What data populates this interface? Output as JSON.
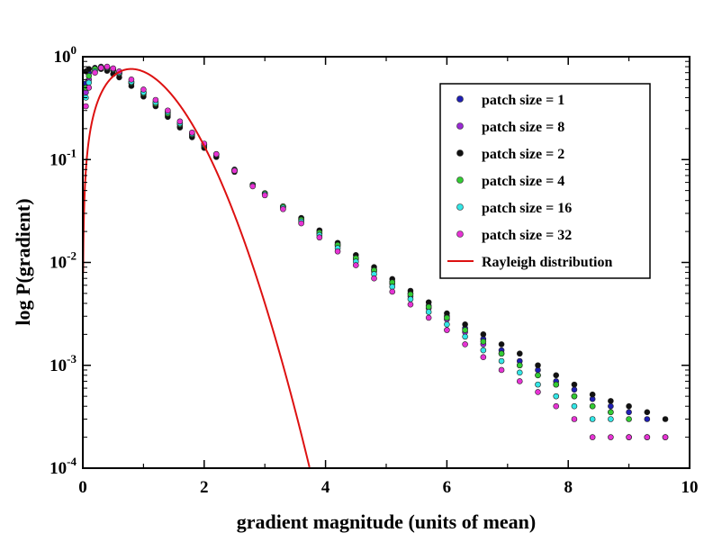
{
  "chart_data": {
    "type": "scatter",
    "title": "",
    "xlabel": "gradient magnitude (units of mean)",
    "ylabel": "log P(gradient)",
    "xlim": [
      0,
      10
    ],
    "ylim": [
      0.0001,
      1
    ],
    "yscale": "log",
    "x_ticks": [
      {
        "value": 0,
        "label": "0"
      },
      {
        "value": 2,
        "label": "2"
      },
      {
        "value": 4,
        "label": "4"
      },
      {
        "value": 6,
        "label": "6"
      },
      {
        "value": 8,
        "label": "8"
      },
      {
        "value": 10,
        "label": "10"
      }
    ],
    "y_ticks": [
      {
        "value": 1,
        "base": "10",
        "exp": "0"
      },
      {
        "value": 0.1,
        "base": "10",
        "exp": "-1"
      },
      {
        "value": 0.01,
        "base": "10",
        "exp": "-2"
      },
      {
        "value": 0.001,
        "base": "10",
        "exp": "-3"
      },
      {
        "value": 0.0001,
        "base": "10",
        "exp": "-4"
      }
    ],
    "legend_position": "top-right",
    "series": [
      {
        "name": "patch size = 1",
        "kind": "scatter",
        "color": "#1f1fb4",
        "x": [
          0.05,
          0.1,
          0.2,
          0.3,
          0.4,
          0.5,
          0.6,
          0.8,
          1.0,
          1.2,
          1.4,
          1.6,
          1.8,
          2.0,
          2.2,
          2.5,
          2.8,
          3.0,
          3.3,
          3.6,
          3.9,
          4.2,
          4.5,
          4.8,
          5.1,
          5.4,
          5.7,
          6.0,
          6.3,
          6.6,
          6.9,
          7.2,
          7.5,
          7.8,
          8.1,
          8.4,
          8.7,
          9.0,
          9.3
        ],
        "y": [
          0.55,
          0.7,
          0.78,
          0.8,
          0.78,
          0.74,
          0.68,
          0.55,
          0.43,
          0.34,
          0.27,
          0.21,
          0.17,
          0.135,
          0.11,
          0.078,
          0.056,
          0.047,
          0.035,
          0.027,
          0.02,
          0.015,
          0.011,
          0.0085,
          0.0065,
          0.005,
          0.0038,
          0.003,
          0.0023,
          0.0018,
          0.0014,
          0.0011,
          0.0009,
          0.0007,
          0.00058,
          0.00047,
          0.0004,
          0.00035,
          0.0003
        ]
      },
      {
        "name": "patch size = 8",
        "kind": "scatter",
        "color": "#9a2ad4",
        "x": [
          0.05,
          0.1,
          0.2,
          0.3,
          0.4,
          0.5,
          0.6,
          0.8,
          1.0,
          1.2,
          1.4,
          1.6,
          1.8,
          2.0,
          2.2,
          2.5,
          2.8,
          3.0,
          3.3,
          3.6,
          3.9,
          4.2,
          4.5,
          4.8,
          5.1,
          5.4,
          5.7,
          6.0,
          6.3,
          6.6,
          6.9,
          7.2,
          7.5,
          7.8,
          8.1,
          8.4,
          8.7
        ],
        "y": [
          0.45,
          0.6,
          0.74,
          0.79,
          0.79,
          0.76,
          0.7,
          0.57,
          0.45,
          0.36,
          0.29,
          0.225,
          0.18,
          0.14,
          0.113,
          0.08,
          0.057,
          0.047,
          0.035,
          0.026,
          0.019,
          0.0145,
          0.0108,
          0.0082,
          0.0062,
          0.0047,
          0.0036,
          0.0028,
          0.0021,
          0.0016,
          0.0013,
          0.001,
          0.0008,
          0.00065,
          0.0005,
          0.0004,
          0.00035
        ]
      },
      {
        "name": "patch size = 2",
        "kind": "scatter",
        "color": "#111111",
        "x": [
          0.05,
          0.1,
          0.2,
          0.3,
          0.4,
          0.5,
          0.6,
          0.8,
          1.0,
          1.2,
          1.4,
          1.6,
          1.8,
          2.0,
          2.2,
          2.5,
          2.8,
          3.0,
          3.3,
          3.6,
          3.9,
          4.2,
          4.5,
          4.8,
          5.1,
          5.4,
          5.7,
          6.0,
          6.3,
          6.6,
          6.9,
          7.2,
          7.5,
          7.8,
          8.1,
          8.4,
          8.7,
          9.0,
          9.3,
          9.6
        ],
        "y": [
          0.72,
          0.76,
          0.77,
          0.76,
          0.73,
          0.68,
          0.63,
          0.52,
          0.41,
          0.33,
          0.26,
          0.205,
          0.165,
          0.13,
          0.106,
          0.076,
          0.056,
          0.046,
          0.035,
          0.027,
          0.0205,
          0.0155,
          0.0118,
          0.009,
          0.0069,
          0.0053,
          0.0041,
          0.0032,
          0.0025,
          0.002,
          0.0016,
          0.0013,
          0.001,
          0.0008,
          0.00065,
          0.00052,
          0.00045,
          0.0004,
          0.00035,
          0.0003
        ]
      },
      {
        "name": "patch size = 4",
        "kind": "scatter",
        "color": "#33cc33",
        "x": [
          0.05,
          0.1,
          0.2,
          0.3,
          0.4,
          0.5,
          0.6,
          0.8,
          1.0,
          1.2,
          1.4,
          1.6,
          1.8,
          2.0,
          2.2,
          2.5,
          2.8,
          3.0,
          3.3,
          3.6,
          3.9,
          4.2,
          4.5,
          4.8,
          5.1,
          5.4,
          5.7,
          6.0,
          6.3,
          6.6,
          6.9,
          7.2,
          7.5,
          7.8,
          8.1,
          8.4,
          8.7,
          9.0
        ],
        "y": [
          0.5,
          0.65,
          0.76,
          0.79,
          0.78,
          0.75,
          0.69,
          0.56,
          0.44,
          0.35,
          0.28,
          0.22,
          0.175,
          0.138,
          0.112,
          0.079,
          0.057,
          0.047,
          0.035,
          0.026,
          0.0195,
          0.0148,
          0.011,
          0.0084,
          0.0064,
          0.0049,
          0.0037,
          0.0029,
          0.0022,
          0.0017,
          0.0013,
          0.001,
          0.0008,
          0.00065,
          0.0005,
          0.0004,
          0.00035,
          0.0003
        ]
      },
      {
        "name": "patch size = 16",
        "kind": "scatter",
        "color": "#33e6e6",
        "x": [
          0.05,
          0.1,
          0.2,
          0.3,
          0.4,
          0.5,
          0.6,
          0.8,
          1.0,
          1.2,
          1.4,
          1.6,
          1.8,
          2.0,
          2.2,
          2.5,
          2.8,
          3.0,
          3.3,
          3.6,
          3.9,
          4.2,
          4.5,
          4.8,
          5.1,
          5.4,
          5.7,
          6.0,
          6.3,
          6.6,
          6.9,
          7.2,
          7.5,
          7.8,
          8.1,
          8.4,
          8.7,
          9.0,
          9.3,
          9.6
        ],
        "y": [
          0.4,
          0.56,
          0.72,
          0.79,
          0.79,
          0.76,
          0.7,
          0.57,
          0.45,
          0.36,
          0.29,
          0.225,
          0.178,
          0.14,
          0.112,
          0.079,
          0.056,
          0.046,
          0.034,
          0.025,
          0.0185,
          0.0138,
          0.0102,
          0.0077,
          0.0058,
          0.0044,
          0.0033,
          0.0025,
          0.0019,
          0.0014,
          0.0011,
          0.00085,
          0.00065,
          0.0005,
          0.0004,
          0.0003,
          0.0003,
          0.0002,
          0.0002,
          0.0002
        ]
      },
      {
        "name": "patch size = 32",
        "kind": "scatter",
        "color": "#e633d4",
        "x": [
          0.05,
          0.1,
          0.2,
          0.3,
          0.4,
          0.5,
          0.6,
          0.8,
          1.0,
          1.2,
          1.4,
          1.6,
          1.8,
          2.0,
          2.2,
          2.5,
          2.8,
          3.0,
          3.3,
          3.6,
          3.9,
          4.2,
          4.5,
          4.8,
          5.1,
          5.4,
          5.7,
          6.0,
          6.3,
          6.6,
          6.9,
          7.2,
          7.5,
          7.8,
          8.1,
          8.4,
          8.7,
          9.0,
          9.3,
          9.6
        ],
        "y": [
          0.33,
          0.5,
          0.7,
          0.78,
          0.8,
          0.77,
          0.72,
          0.6,
          0.48,
          0.38,
          0.3,
          0.235,
          0.183,
          0.143,
          0.113,
          0.078,
          0.055,
          0.045,
          0.033,
          0.024,
          0.0175,
          0.0128,
          0.0094,
          0.007,
          0.0052,
          0.0039,
          0.0029,
          0.0022,
          0.0016,
          0.0012,
          0.0009,
          0.0007,
          0.00055,
          0.0004,
          0.0003,
          0.0002,
          0.0002,
          0.0002,
          0.0002,
          0.0002
        ]
      },
      {
        "name": "Rayleigh distribution",
        "kind": "line",
        "color": "#dd1111",
        "function": "rayleigh_mean_1"
      }
    ]
  }
}
